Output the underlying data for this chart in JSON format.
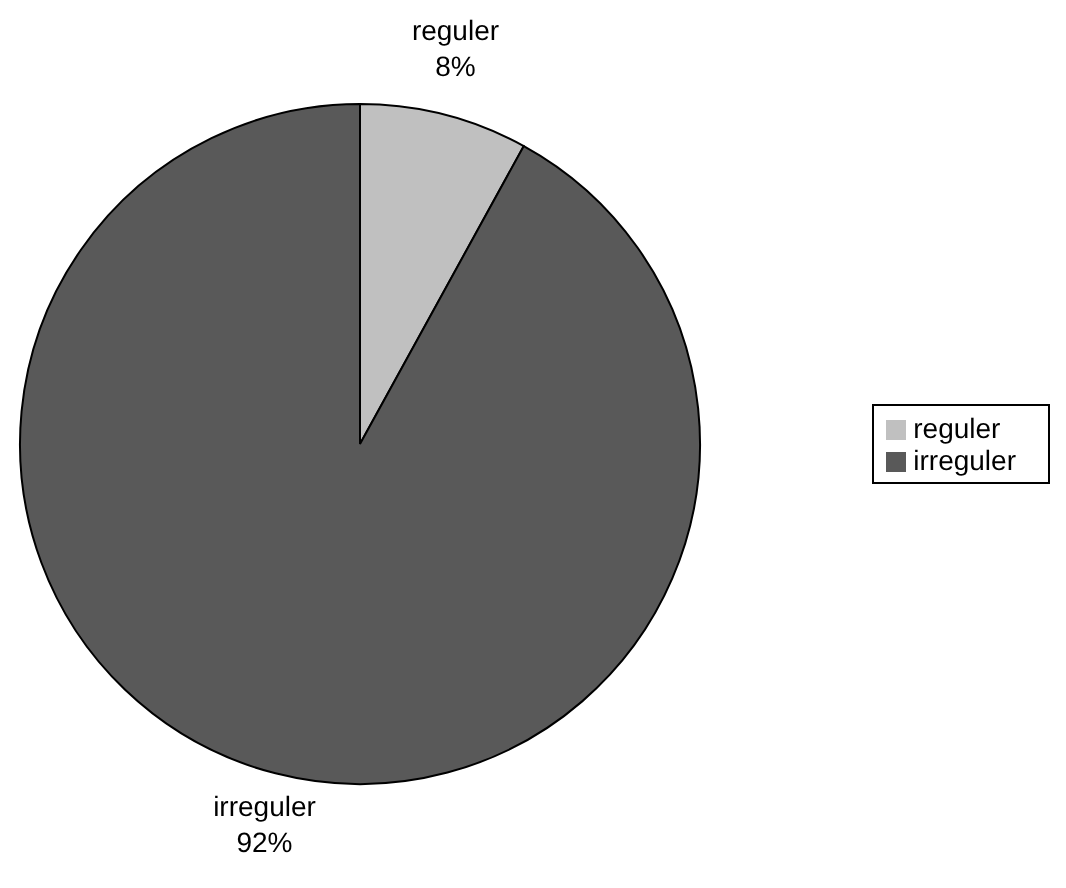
{
  "chart_data": {
    "type": "pie",
    "categories": [
      "reguler",
      "irreguler"
    ],
    "values": [
      8,
      92
    ],
    "colors": [
      "#c0c0c0",
      "#595959"
    ],
    "value_labels": [
      "8%",
      "92%"
    ],
    "legend": "right"
  }
}
